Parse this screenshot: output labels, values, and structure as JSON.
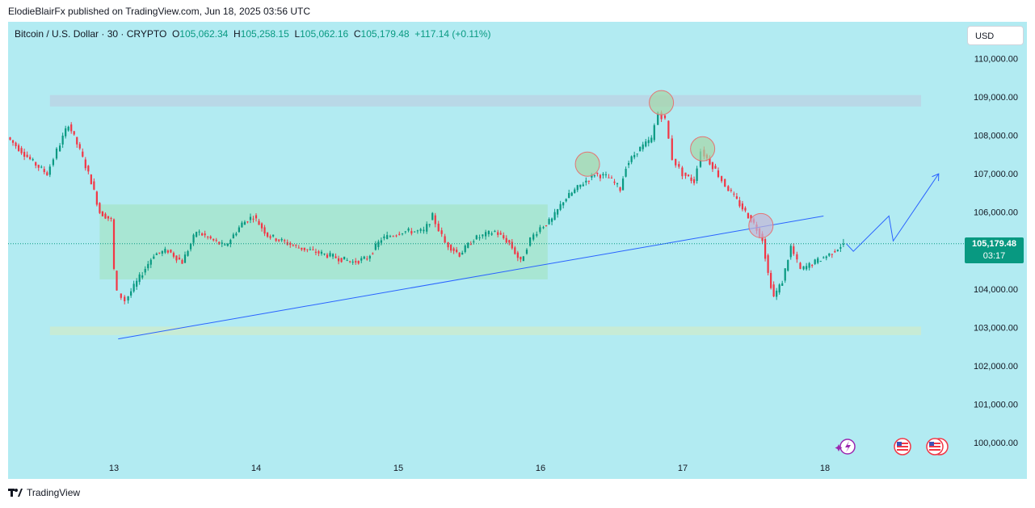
{
  "header": {
    "text": "ElodieBlairFx published on TradingView.com, Jun 18, 2025 03:56 UTC"
  },
  "legend": {
    "symbol": "Bitcoin / U.S. Dollar · 30 · CRYPTO",
    "o_label": "O",
    "o": "105,062.34",
    "h_label": "H",
    "h": "105,258.15",
    "l_label": "L",
    "l": "105,062.16",
    "c_label": "C",
    "c": "105,179.48",
    "change": "+117.14 (+0.11%)"
  },
  "currency": "USD",
  "price_tag": {
    "price": "105,179.48",
    "countdown": "03:17"
  },
  "footer": {
    "brand": "TradingView",
    "logo_icon": "tradingview-logo-icon"
  },
  "colors": {
    "up": "#089981",
    "down": "#f23645",
    "background": "#b2ebf2",
    "trendline": "#2962ff"
  },
  "chart_data": {
    "type": "candlestick",
    "symbol": "BTCUSD",
    "interval": "30",
    "x_ticks": [
      "13",
      "14",
      "15",
      "16",
      "17",
      "18"
    ],
    "y_ticks": [
      "110,000.00",
      "109,000.00",
      "108,000.00",
      "107,000.00",
      "106,000.00",
      "105,000.00",
      "104,000.00",
      "103,000.00",
      "102,000.00",
      "101,000.00",
      "100,000.00"
    ],
    "ylim": [
      99600,
      110650
    ],
    "xlim_days": [
      12.25,
      19.4
    ],
    "last_price": 105179.48,
    "path": [
      [
        12.27,
        107950
      ],
      [
        12.45,
        107300
      ],
      [
        12.55,
        107000
      ],
      [
        12.62,
        107600
      ],
      [
        12.7,
        108300
      ],
      [
        12.78,
        107600
      ],
      [
        12.86,
        106800
      ],
      [
        12.92,
        106000
      ],
      [
        13.0,
        105800
      ],
      [
        13.02,
        104500
      ],
      [
        13.05,
        103900
      ],
      [
        13.1,
        103700
      ],
      [
        13.2,
        104300
      ],
      [
        13.3,
        104900
      ],
      [
        13.4,
        105000
      ],
      [
        13.5,
        104700
      ],
      [
        13.6,
        105500
      ],
      [
        13.7,
        105300
      ],
      [
        13.8,
        105100
      ],
      [
        13.92,
        105700
      ],
      [
        14.0,
        105900
      ],
      [
        14.1,
        105400
      ],
      [
        14.3,
        105100
      ],
      [
        14.5,
        104900
      ],
      [
        14.7,
        104700
      ],
      [
        14.8,
        104800
      ],
      [
        14.9,
        105300
      ],
      [
        15.05,
        105500
      ],
      [
        15.2,
        105500
      ],
      [
        15.26,
        105900
      ],
      [
        15.35,
        105200
      ],
      [
        15.45,
        104900
      ],
      [
        15.55,
        105300
      ],
      [
        15.7,
        105500
      ],
      [
        15.8,
        105200
      ],
      [
        15.88,
        104700
      ],
      [
        15.95,
        105300
      ],
      [
        16.02,
        105600
      ],
      [
        16.1,
        105800
      ],
      [
        16.18,
        106300
      ],
      [
        16.3,
        106700
      ],
      [
        16.4,
        107000
      ],
      [
        16.5,
        106900
      ],
      [
        16.58,
        106600
      ],
      [
        16.62,
        107200
      ],
      [
        16.7,
        107600
      ],
      [
        16.8,
        107900
      ],
      [
        16.85,
        108600
      ],
      [
        16.9,
        108400
      ],
      [
        16.95,
        107400
      ],
      [
        17.02,
        107000
      ],
      [
        17.1,
        106800
      ],
      [
        17.15,
        107600
      ],
      [
        17.25,
        107100
      ],
      [
        17.32,
        106700
      ],
      [
        17.42,
        106200
      ],
      [
        17.52,
        105700
      ],
      [
        17.58,
        105300
      ],
      [
        17.62,
        104400
      ],
      [
        17.66,
        103800
      ],
      [
        17.72,
        104200
      ],
      [
        17.78,
        105100
      ],
      [
        17.85,
        104500
      ],
      [
        17.95,
        104700
      ],
      [
        18.05,
        104900
      ],
      [
        18.15,
        105180
      ]
    ],
    "zones": [
      {
        "price_range": [
          108750,
          109050
        ],
        "day_range": [
          12.55,
          19.1
        ],
        "color": "#b9d7e6"
      },
      {
        "price_range": [
          102800,
          103020
        ],
        "day_range": [
          12.55,
          19.1
        ],
        "color": "#c8ebd3"
      },
      {
        "price_range": [
          104250,
          106200
        ],
        "day_range": [
          12.9,
          16.05
        ],
        "color": "#a8e6d1"
      }
    ],
    "trendline": {
      "from": [
        13.03,
        102700
      ],
      "to": [
        17.99,
        105900
      ]
    },
    "projection": [
      [
        18.15,
        105180
      ],
      [
        18.2,
        104980
      ],
      [
        18.45,
        105900
      ],
      [
        18.48,
        105250
      ],
      [
        18.8,
        107000
      ]
    ],
    "circles": [
      {
        "day": 16.33,
        "price": 107250,
        "color": "#a5d6a7"
      },
      {
        "day": 16.85,
        "price": 108850,
        "color": "#a5d6a7"
      },
      {
        "day": 17.14,
        "price": 107650,
        "color": "#a5d6a7"
      },
      {
        "day": 17.55,
        "price": 105650,
        "color": "#c3b5d6"
      }
    ]
  }
}
